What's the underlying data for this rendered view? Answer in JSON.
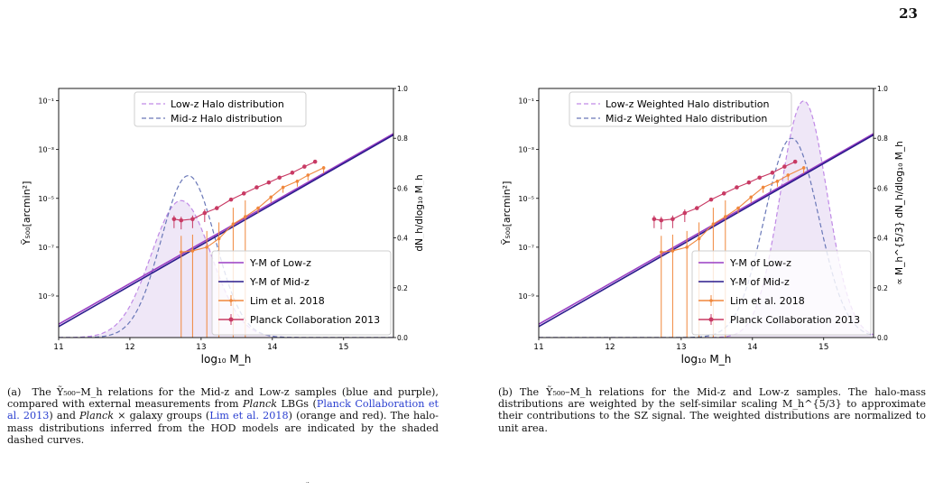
{
  "page_number": "23",
  "colors": {
    "low_z_line": "#9a3fc4",
    "mid_z_line": "#2a1a8c",
    "low_z_dash": "#c08ae6",
    "mid_z_dash": "#6a78b8",
    "lim": "#f0873c",
    "planck": "#c83a64",
    "fill": "#e9dff4"
  },
  "chart_data": [
    {
      "type": "line",
      "panel": "a",
      "xlabel": "log₁₀ M_h",
      "ylabel": "Ỹ₅₀₀[arcmin²]",
      "ylabel_right": "dN_h/dlog₁₀ M_h",
      "xlim": [
        11,
        15.7
      ],
      "ylim_log10": [
        -10.7,
        -0.5
      ],
      "xticks": [
        "11",
        "12",
        "13",
        "14",
        "15"
      ],
      "yticks": [
        "10⁻¹",
        "10⁻³",
        "10⁻⁵",
        "10⁻⁷",
        "10⁻⁹"
      ],
      "yticks_right": [
        "1.0",
        "0.8",
        "0.6",
        "0.4",
        "0.2",
        "0.0"
      ],
      "legend_top": [
        "Low-z Halo distribution",
        "Mid-z Halo distribution"
      ],
      "legend_bottom": [
        "Y-M of Low-z",
        "Y-M of Mid-z",
        "Lim et al. 2018",
        "Planck Collaboration 2013"
      ],
      "ym_line_low": {
        "x": [
          11,
          15.7
        ],
        "log10_y": [
          -10.15,
          -2.35
        ]
      },
      "ym_line_mid": {
        "x": [
          11,
          15.7
        ],
        "log10_y": [
          -10.25,
          -2.4
        ]
      },
      "halo_low": {
        "mu": 12.72,
        "sigma": 0.42,
        "peak": 0.55
      },
      "halo_mid": {
        "mu": 12.82,
        "sigma": 0.38,
        "peak": 0.65
      },
      "lim": {
        "x": [
          12.72,
          12.88,
          13.08,
          13.25,
          13.45,
          13.62,
          13.8,
          13.98,
          14.15,
          14.35,
          14.5,
          14.72
        ],
        "log10_y": [
          -7.2,
          -7.15,
          -7.0,
          -6.65,
          -6.05,
          -5.75,
          -5.4,
          -4.95,
          -4.55,
          -4.3,
          -4.05,
          -3.75
        ]
      },
      "planck": {
        "x": [
          12.62,
          12.72,
          12.88,
          13.05,
          13.22,
          13.42,
          13.6,
          13.78,
          13.95,
          14.1,
          14.28,
          14.45,
          14.6
        ],
        "log10_y": [
          -5.85,
          -5.9,
          -5.85,
          -5.6,
          -5.4,
          -5.05,
          -4.8,
          -4.55,
          -4.35,
          -4.15,
          -3.95,
          -3.7,
          -3.5
        ]
      }
    },
    {
      "type": "line",
      "panel": "b",
      "xlabel": "log₁₀ M_h",
      "ylabel": "Ỹ₅₀₀[arcmin²]",
      "ylabel_right": "∝ M_h^{5/3} dN_h/dlog₁₀ M_h",
      "xlim": [
        11,
        15.7
      ],
      "ylim_log10": [
        -10.7,
        -0.5
      ],
      "xticks": [
        "11",
        "12",
        "13",
        "14",
        "15"
      ],
      "yticks": [
        "10⁻¹",
        "10⁻³",
        "10⁻⁵",
        "10⁻⁷",
        "10⁻⁹"
      ],
      "yticks_right": [
        "1.0",
        "0.8",
        "0.6",
        "0.4",
        "0.2",
        "0.0"
      ],
      "legend_top": [
        "Low-z Weighted Halo distribution",
        "Mid-z Weighted Halo distribution"
      ],
      "legend_bottom": [
        "Y-M of Low-z",
        "Y-M of Mid-z",
        "Lim et al. 2018",
        "Planck Collaboration 2013"
      ],
      "ym_line_low": {
        "x": [
          11,
          15.7
        ],
        "log10_y": [
          -10.15,
          -2.35
        ]
      },
      "ym_line_mid": {
        "x": [
          11,
          15.7
        ],
        "log10_y": [
          -10.25,
          -2.4
        ]
      },
      "halo_low": {
        "mu": 14.72,
        "sigma": 0.33,
        "peak": 0.95
      },
      "halo_mid": {
        "mu": 14.55,
        "sigma": 0.38,
        "peak": 0.8
      },
      "lim": {
        "x": [
          12.72,
          12.88,
          13.08,
          13.25,
          13.45,
          13.62,
          13.8,
          13.98,
          14.15,
          14.35,
          14.5,
          14.72
        ],
        "log10_y": [
          -7.2,
          -7.15,
          -7.0,
          -6.65,
          -6.05,
          -5.75,
          -5.4,
          -4.95,
          -4.55,
          -4.3,
          -4.05,
          -3.75
        ]
      },
      "planck": {
        "x": [
          12.62,
          12.72,
          12.88,
          13.05,
          13.22,
          13.42,
          13.6,
          13.78,
          13.95,
          14.1,
          14.28,
          14.45,
          14.6
        ],
        "log10_y": [
          -5.85,
          -5.9,
          -5.85,
          -5.6,
          -5.4,
          -5.05,
          -4.8,
          -4.55,
          -4.35,
          -4.15,
          -3.95,
          -3.7,
          -3.5
        ]
      }
    }
  ],
  "captions": {
    "a": {
      "label": "(a)",
      "p1": "The Ỹ₅₀₀–M_h relations for the Mid-z and Low-z samples (blue and purple), compared with external measurements from",
      "planck_word": "Planck",
      "p2": "LBGs (",
      "cite1": "Planck Collaboration et al. 2013",
      "p3": ") and",
      "planck_word2": "Planck",
      "p4": "× galaxy groups (",
      "cite2": "Lim et al. 2018",
      "p5": ") (orange and red). The halo-mass distributions inferred from the HOD models are indicated by the shaded dashed curves."
    },
    "b": {
      "label": "(b)",
      "text": "The Ỹ₅₀₀–M_h relations for the Mid-z and Low-z samples. The halo-mass distributions are weighted by the self-similar scaling M_h^{5/3} to approximate their contributions to the SZ signal. The weighted distributions are normalized to unit area."
    }
  },
  "footer_fragment": "˜"
}
